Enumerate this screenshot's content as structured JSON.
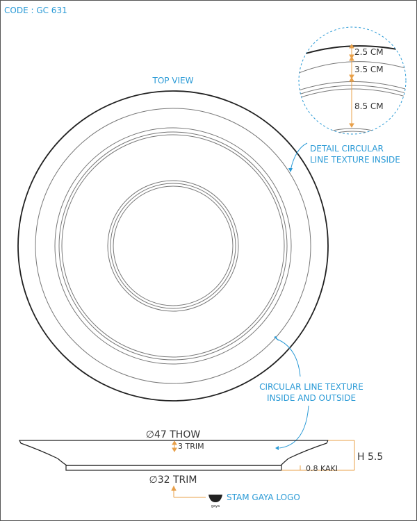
{
  "code": "CODE : GC 631",
  "top_view_label": "TOP VIEW",
  "detail": {
    "dim1": "2.5 CM",
    "dim2": "3.5 CM",
    "dim3": "8.5 CM",
    "note_line1": "DETAIL CIRCULAR",
    "note_line2": "LINE TEXTURE INSIDE"
  },
  "circular_note": {
    "line1": "CIRCULAR LINE TEXTURE",
    "line2": "INSIDE AND OUTSIDE"
  },
  "side": {
    "diameter_top": "∅47 THOW",
    "trim_top": "3 TRIM",
    "height": "H 5.5",
    "kaki": "0.8 KAKI",
    "diameter_bottom": "∅32 TRIM",
    "logo_label": "STAM GAYA LOGO",
    "logo_text": "gaya"
  },
  "colors": {
    "accent_blue": "#2a9ad6",
    "dimension_orange": "#e8a04a",
    "line": "#333333"
  }
}
